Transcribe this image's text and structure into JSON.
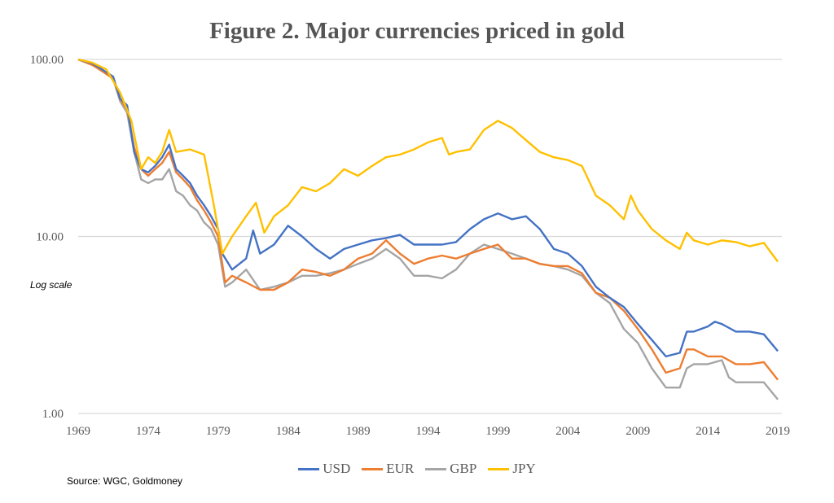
{
  "chart_data": {
    "type": "line",
    "title": "Figure 2.  Major currencies priced in gold",
    "annotation": "Log scale",
    "source": "Source: WGC, Goldmoney",
    "y_scale": "log",
    "ylim": [
      1,
      100
    ],
    "y_ticks": [
      "1.00",
      "10.00",
      "100.00"
    ],
    "xlim": [
      1969,
      2019
    ],
    "x_ticks": [
      "1969",
      "1974",
      "1979",
      "1984",
      "1989",
      "1994",
      "1999",
      "2004",
      "2009",
      "2014",
      "2019"
    ],
    "grid": "horizontal",
    "legend": "bottom",
    "series": [
      {
        "name": "USD",
        "color": "#4472C4",
        "x": [
          1969,
          1970,
          1970.5,
          1971.5,
          1972,
          1972.5,
          1973,
          1973.5,
          1974,
          1974.5,
          1975,
          1975.5,
          1976,
          1976.5,
          1977,
          1977.5,
          1978,
          1978.5,
          1979,
          1979.3,
          1980,
          1981,
          1981.5,
          1982,
          1983,
          1984,
          1985,
          1986,
          1987,
          1988,
          1989,
          1990,
          1991,
          1992,
          1993,
          1994,
          1995,
          1996,
          1997,
          1998,
          1999,
          2000,
          2001,
          2002,
          2003,
          2004,
          2005,
          2006,
          2007,
          2008,
          2009,
          2010,
          2011,
          2012,
          2012.5,
          2013,
          2014,
          2014.5,
          2015,
          2016,
          2017,
          2018,
          2019
        ],
        "y": [
          100,
          95,
          90,
          80,
          60,
          55,
          30,
          24,
          23,
          25,
          28,
          33,
          24,
          22,
          20,
          17,
          15,
          13,
          11,
          8,
          6.5,
          7.5,
          10.8,
          8,
          9,
          11.5,
          10,
          8.5,
          7.5,
          8.5,
          9,
          9.5,
          9.8,
          10.2,
          9,
          9,
          9,
          9.3,
          11,
          12.5,
          13.5,
          12.5,
          13,
          11,
          8.5,
          8,
          6.8,
          5.2,
          4.5,
          4,
          3.2,
          2.6,
          2.1,
          2.2,
          2.9,
          2.9,
          3.1,
          3.3,
          3.2,
          2.9,
          2.9,
          2.8,
          2.25
        ]
      },
      {
        "name": "EUR",
        "color": "#ED7D31",
        "x": [
          1969,
          1970,
          1970.5,
          1971.5,
          1972,
          1972.5,
          1973,
          1973.5,
          1974,
          1974.5,
          1975,
          1975.5,
          1976,
          1976.5,
          1977,
          1977.5,
          1978,
          1978.5,
          1979,
          1979.5,
          1980,
          1981,
          1982,
          1983,
          1984,
          1985,
          1986,
          1987,
          1988,
          1989,
          1990,
          1991,
          1992,
          1993,
          1994,
          1995,
          1996,
          1997,
          1998,
          1999,
          2000,
          2001,
          2002,
          2003,
          2004,
          2005,
          2006,
          2007,
          2008,
          2009,
          2010,
          2011,
          2012,
          2012.5,
          2013,
          2014,
          2015,
          2016,
          2017,
          2018,
          2019
        ],
        "y": [
          100,
          93,
          88,
          78,
          60,
          52,
          32,
          24,
          22,
          24,
          26,
          30,
          23,
          21,
          19,
          16,
          14,
          12,
          10,
          5.5,
          6,
          5.5,
          5,
          5,
          5.5,
          6.5,
          6.3,
          6,
          6.5,
          7.5,
          8,
          9.5,
          8,
          7,
          7.5,
          7.8,
          7.5,
          8,
          8.5,
          9,
          7.5,
          7.5,
          7,
          6.8,
          6.8,
          6.2,
          4.8,
          4.5,
          3.8,
          3,
          2.3,
          1.7,
          1.8,
          2.3,
          2.3,
          2.1,
          2.1,
          1.9,
          1.9,
          1.95,
          1.55
        ]
      },
      {
        "name": "GBP",
        "color": "#A5A5A5",
        "x": [
          1969,
          1970,
          1970.5,
          1971.5,
          1972,
          1972.5,
          1973,
          1973.5,
          1974,
          1974.5,
          1975,
          1975.5,
          1976,
          1976.5,
          1977,
          1977.5,
          1978,
          1978.5,
          1979,
          1979.5,
          1980,
          1981,
          1982,
          1983,
          1984,
          1985,
          1986,
          1987,
          1988,
          1989,
          1990,
          1991,
          1992,
          1993,
          1994,
          1995,
          1996,
          1997,
          1998,
          1999,
          2000,
          2001,
          2002,
          2003,
          2004,
          2005,
          2006,
          2007,
          2008,
          2009,
          2010,
          2011,
          2012,
          2012.5,
          2013,
          2014,
          2015,
          2015.5,
          2016,
          2017,
          2018,
          2019
        ],
        "y": [
          100,
          94,
          88,
          78,
          58,
          50,
          30,
          21,
          20,
          21,
          21,
          24,
          18,
          17,
          15,
          14,
          12,
          11,
          9,
          5.2,
          5.5,
          6.5,
          5,
          5.2,
          5.5,
          6,
          6,
          6.2,
          6.5,
          7,
          7.5,
          8.5,
          7.5,
          6,
          6,
          5.8,
          6.5,
          8,
          9,
          8.5,
          8,
          7.5,
          7,
          6.8,
          6.5,
          6,
          4.8,
          4.2,
          3,
          2.5,
          1.8,
          1.4,
          1.4,
          1.8,
          1.9,
          1.9,
          2,
          1.6,
          1.5,
          1.5,
          1.5,
          1.2
        ]
      },
      {
        "name": "JPY",
        "color": "#FFC000",
        "x": [
          1969,
          1970,
          1971,
          1972,
          1972.8,
          1973.5,
          1974,
          1974.5,
          1975,
          1975.5,
          1976,
          1977,
          1978,
          1978.7,
          1979.3,
          1980,
          1981,
          1981.7,
          1982.3,
          1983,
          1984,
          1985,
          1986,
          1987,
          1988,
          1989,
          1990,
          1991,
          1992,
          1993,
          1994,
          1995,
          1995.5,
          1996,
          1997,
          1998,
          1999,
          2000,
          2001,
          2002,
          2003,
          2004,
          2005,
          2006,
          2007,
          2008,
          2008.5,
          2009,
          2010,
          2011,
          2012,
          2012.5,
          2013,
          2014,
          2015,
          2016,
          2017,
          2018,
          2019
        ],
        "y": [
          100,
          96,
          88,
          65,
          45,
          24,
          28,
          26,
          30,
          40,
          30,
          31,
          29,
          15,
          8,
          10,
          13,
          15.5,
          10.5,
          13,
          15,
          19,
          18,
          20,
          24,
          22,
          25,
          28,
          29,
          31,
          34,
          36,
          29,
          30,
          31,
          40,
          45,
          41,
          35,
          30,
          28,
          27,
          25,
          17,
          15,
          12.5,
          17,
          14,
          11,
          9.5,
          8.5,
          10.5,
          9.5,
          9,
          9.5,
          9.3,
          8.8,
          9.2,
          7.2
        ]
      }
    ]
  }
}
